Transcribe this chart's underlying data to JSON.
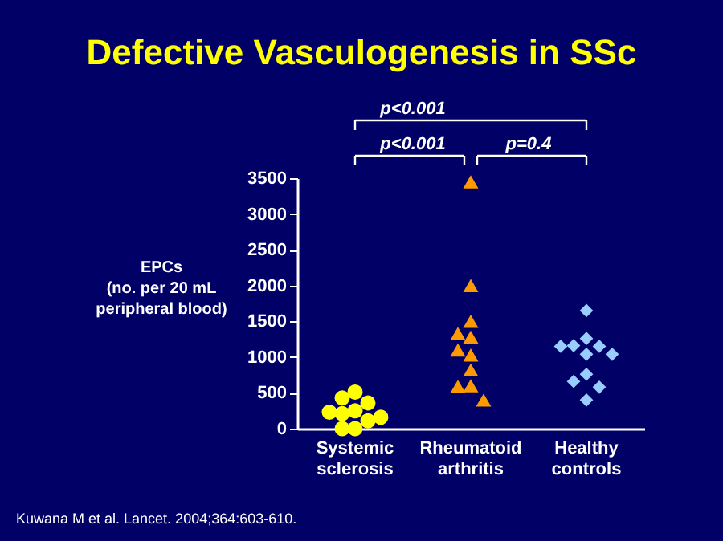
{
  "chart_data": {
    "type": "scatter",
    "title": "Defective Vasculogenesis in SSc",
    "ylabel": "EPCs\n(no. per 20 mL\nperipheral blood)",
    "categories": [
      "Systemic sclerosis",
      "Rheumatoid arthritis",
      "Healthy controls"
    ],
    "series": [
      {
        "color": "#ffff00",
        "marker": "circle",
        "x": [
          "Systemic sclerosis",
          "Systemic sclerosis",
          "Systemic sclerosis",
          "Systemic sclerosis",
          "Systemic sclerosis",
          "Systemic sclerosis",
          "Systemic sclerosis",
          "Systemic sclerosis",
          "Systemic sclerosis",
          "Systemic sclerosis"
        ],
        "values": [
          510,
          430,
          360,
          250,
          230,
          210,
          160,
          110,
          0,
          0
        ]
      },
      {
        "color": "#ff9900",
        "marker": "triangle",
        "x": [
          "Rheumatoid arthritis",
          "Rheumatoid arthritis",
          "Rheumatoid arthritis",
          "Rheumatoid arthritis",
          "Rheumatoid arthritis",
          "Rheumatoid arthritis",
          "Rheumatoid arthritis",
          "Rheumatoid arthritis",
          "Rheumatoid arthritis",
          "Rheumatoid arthritis",
          "Rheumatoid arthritis"
        ],
        "values": [
          3450,
          2000,
          1500,
          1330,
          1280,
          1100,
          1030,
          820,
          600,
          590,
          400
        ]
      },
      {
        "color": "#99ccff",
        "marker": "diamond",
        "x": [
          "Healthy controls",
          "Healthy controls",
          "Healthy controls",
          "Healthy controls",
          "Healthy controls",
          "Healthy controls",
          "Healthy controls",
          "Healthy controls",
          "Healthy controls",
          "Healthy controls",
          "Healthy controls"
        ],
        "values": [
          1650,
          1260,
          1160,
          1150,
          1150,
          1040,
          1040,
          760,
          660,
          580,
          400
        ]
      }
    ],
    "ylim": [
      0,
      3500
    ],
    "yticks": [
      0,
      500,
      1000,
      1500,
      2000,
      2500,
      3000,
      3500
    ],
    "grid": false,
    "legend": false,
    "annotations": [
      "p<0.001",
      "p<0.001",
      "p=0.4",
      "Kuwana M et al. Lancet. 2004;364:603-610."
    ]
  }
}
